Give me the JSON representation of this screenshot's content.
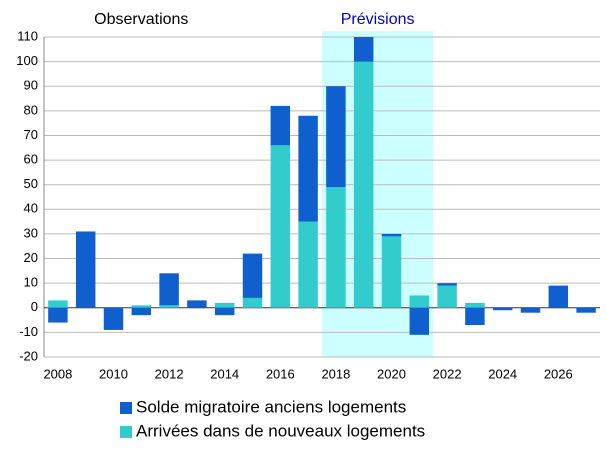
{
  "chart_data": {
    "type": "bar",
    "x": [
      2008,
      2009,
      2010,
      2011,
      2012,
      2013,
      2014,
      2015,
      2016,
      2017,
      2018,
      2019,
      2020,
      2021,
      2022,
      2023,
      2024,
      2025,
      2026,
      2027
    ],
    "series": [
      {
        "name": "Solde migratoire anciens logements",
        "color": "#0f5fce",
        "values": [
          -6,
          31,
          -9,
          -3,
          13,
          3,
          -3,
          18,
          16,
          43,
          41,
          10,
          1,
          -11,
          1,
          -7,
          -1,
          -2,
          9,
          -2
        ]
      },
      {
        "name": "Arrivées dans de nouveaux logements",
        "color": "#33cccc",
        "values": [
          3,
          0,
          0,
          1,
          1,
          0,
          2,
          4,
          66,
          35,
          49,
          100,
          29,
          5,
          9,
          2,
          0,
          0,
          0,
          0
        ]
      }
    ],
    "stack_order": [
      1,
      0
    ],
    "xlim": [
      2007.5,
      2027.5
    ],
    "xticks": [
      2008,
      2010,
      2012,
      2014,
      2016,
      2018,
      2020,
      2022,
      2024,
      2026
    ],
    "ylim": [
      -20,
      110
    ],
    "yticks": [
      -20,
      -10,
      0,
      10,
      20,
      30,
      40,
      50,
      60,
      70,
      80,
      90,
      100,
      110
    ],
    "grid": true,
    "shade_x": [
      2017.5,
      2021.5
    ],
    "shade_color": "#ccffff",
    "annotations": [
      {
        "text": "Observations",
        "x": 2011,
        "color": "#000000"
      },
      {
        "text": "Prévisions",
        "x": 2019.5,
        "color": "#0000cc"
      }
    ],
    "legend": "bottom"
  }
}
